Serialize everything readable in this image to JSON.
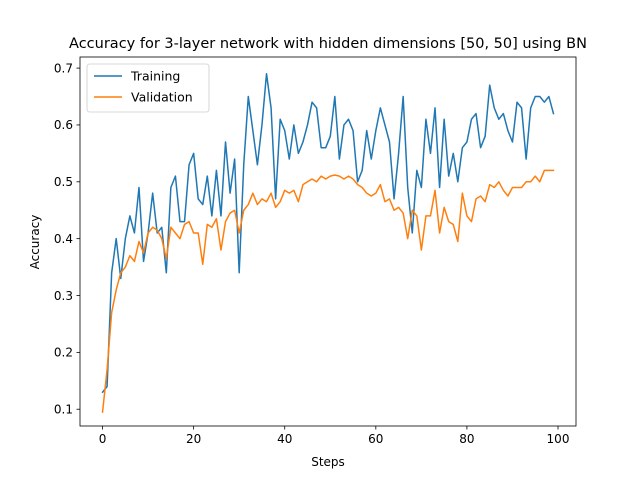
{
  "chart_data": {
    "type": "line",
    "title": "Accuracy for 3-layer network with hidden dimensions [50, 50] using BN",
    "xlabel": "Steps",
    "ylabel": "Accuracy",
    "xlim": [
      -4.95,
      103.95
    ],
    "ylim": [
      0.0705,
      0.7195
    ],
    "xticks": [
      0,
      20,
      40,
      60,
      80,
      100
    ],
    "yticks": [
      0.1,
      0.2,
      0.3,
      0.4,
      0.5,
      0.6,
      0.7
    ],
    "xtick_labels": [
      "0",
      "20",
      "40",
      "60",
      "80",
      "100"
    ],
    "ytick_labels": [
      "0.1",
      "0.2",
      "0.3",
      "0.4",
      "0.5",
      "0.6",
      "0.7"
    ],
    "grid": false,
    "legend_position": "top-left",
    "series": [
      {
        "name": "Training",
        "color": "#1f77b4",
        "x": [
          0,
          1,
          2,
          3,
          4,
          5,
          6,
          7,
          8,
          9,
          10,
          11,
          12,
          13,
          14,
          15,
          16,
          17,
          18,
          19,
          20,
          21,
          22,
          23,
          24,
          25,
          26,
          27,
          28,
          29,
          30,
          31,
          32,
          33,
          34,
          35,
          36,
          37,
          38,
          39,
          40,
          41,
          42,
          43,
          44,
          45,
          46,
          47,
          48,
          49,
          50,
          51,
          52,
          53,
          54,
          55,
          56,
          57,
          58,
          59,
          60,
          61,
          62,
          63,
          64,
          65,
          66,
          67,
          68,
          69,
          70,
          71,
          72,
          73,
          74,
          75,
          76,
          77,
          78,
          79,
          80,
          81,
          82,
          83,
          84,
          85,
          86,
          87,
          88,
          89,
          90,
          91,
          92,
          93,
          94,
          95,
          96,
          97,
          98,
          99
        ],
        "values": [
          0.13,
          0.14,
          0.34,
          0.4,
          0.33,
          0.4,
          0.44,
          0.41,
          0.49,
          0.36,
          0.41,
          0.48,
          0.41,
          0.42,
          0.34,
          0.49,
          0.51,
          0.43,
          0.43,
          0.53,
          0.55,
          0.47,
          0.46,
          0.51,
          0.44,
          0.52,
          0.44,
          0.57,
          0.48,
          0.54,
          0.34,
          0.53,
          0.65,
          0.59,
          0.53,
          0.6,
          0.69,
          0.63,
          0.47,
          0.61,
          0.59,
          0.54,
          0.6,
          0.55,
          0.57,
          0.6,
          0.64,
          0.63,
          0.56,
          0.56,
          0.58,
          0.65,
          0.54,
          0.6,
          0.61,
          0.59,
          0.5,
          0.52,
          0.59,
          0.54,
          0.59,
          0.63,
          0.6,
          0.57,
          0.47,
          0.55,
          0.65,
          0.49,
          0.41,
          0.52,
          0.49,
          0.61,
          0.55,
          0.63,
          0.49,
          0.61,
          0.51,
          0.55,
          0.5,
          0.56,
          0.57,
          0.61,
          0.62,
          0.56,
          0.58,
          0.67,
          0.63,
          0.61,
          0.62,
          0.59,
          0.57,
          0.64,
          0.63,
          0.54,
          0.63,
          0.65,
          0.65,
          0.64,
          0.65,
          0.62
        ]
      },
      {
        "name": "Validation",
        "color": "#ff7f0e",
        "x": [
          0,
          1,
          2,
          3,
          4,
          5,
          6,
          7,
          8,
          9,
          10,
          11,
          12,
          13,
          14,
          15,
          16,
          17,
          18,
          19,
          20,
          21,
          22,
          23,
          24,
          25,
          26,
          27,
          28,
          29,
          30,
          31,
          32,
          33,
          34,
          35,
          36,
          37,
          38,
          39,
          40,
          41,
          42,
          43,
          44,
          45,
          46,
          47,
          48,
          49,
          50,
          51,
          52,
          53,
          54,
          55,
          56,
          57,
          58,
          59,
          60,
          61,
          62,
          63,
          64,
          65,
          66,
          67,
          68,
          69,
          70,
          71,
          72,
          73,
          74,
          75,
          76,
          77,
          78,
          79,
          80,
          81,
          82,
          83,
          84,
          85,
          86,
          87,
          88,
          89,
          90,
          91,
          92,
          93,
          94,
          95,
          96,
          97,
          98,
          99
        ],
        "values": [
          0.095,
          0.17,
          0.27,
          0.31,
          0.34,
          0.35,
          0.37,
          0.36,
          0.395,
          0.375,
          0.41,
          0.42,
          0.415,
          0.4,
          0.365,
          0.42,
          0.41,
          0.4,
          0.425,
          0.43,
          0.41,
          0.41,
          0.355,
          0.425,
          0.42,
          0.435,
          0.38,
          0.43,
          0.445,
          0.45,
          0.41,
          0.45,
          0.46,
          0.48,
          0.46,
          0.47,
          0.465,
          0.48,
          0.455,
          0.465,
          0.485,
          0.48,
          0.485,
          0.465,
          0.495,
          0.5,
          0.505,
          0.5,
          0.51,
          0.505,
          0.51,
          0.512,
          0.51,
          0.505,
          0.51,
          0.505,
          0.495,
          0.49,
          0.48,
          0.475,
          0.48,
          0.495,
          0.465,
          0.47,
          0.45,
          0.455,
          0.445,
          0.4,
          0.45,
          0.44,
          0.38,
          0.44,
          0.44,
          0.485,
          0.41,
          0.455,
          0.43,
          0.425,
          0.395,
          0.48,
          0.44,
          0.43,
          0.47,
          0.475,
          0.465,
          0.495,
          0.49,
          0.5,
          0.485,
          0.475,
          0.49,
          0.49,
          0.49,
          0.5,
          0.5,
          0.51,
          0.5,
          0.52,
          0.52,
          0.52
        ]
      }
    ]
  }
}
